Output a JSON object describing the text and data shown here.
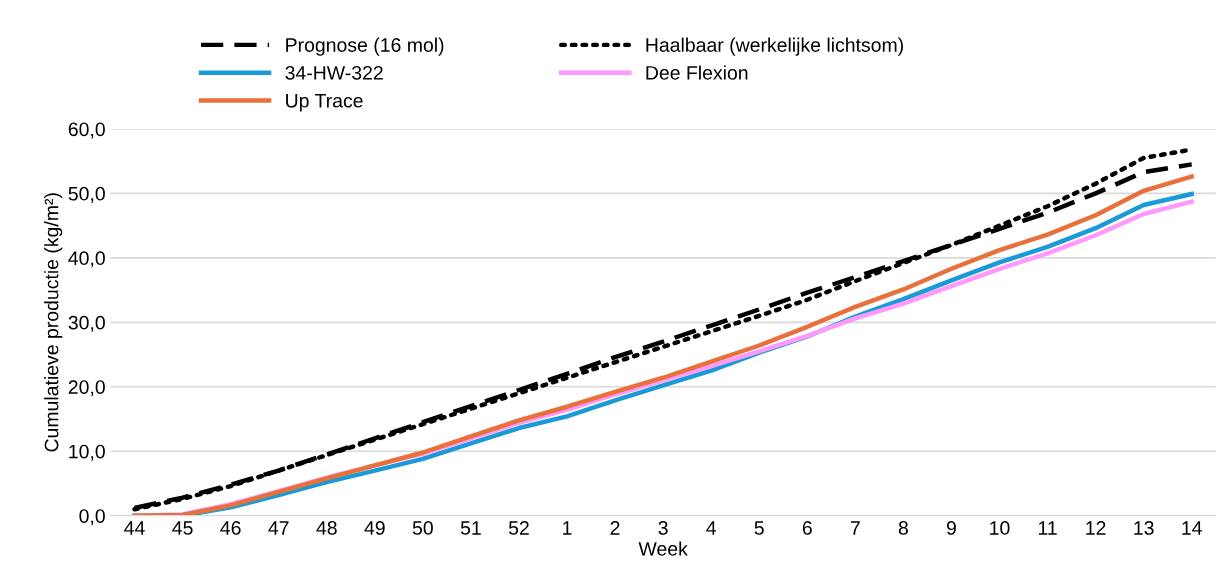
{
  "chart_data": {
    "type": "line",
    "xlabel": "Week",
    "ylabel": "Cumulatieve productie (kg/m²)",
    "categories": [
      "44",
      "45",
      "46",
      "47",
      "48",
      "49",
      "50",
      "51",
      "52",
      "1",
      "2",
      "3",
      "4",
      "5",
      "6",
      "7",
      "8",
      "9",
      "10",
      "11",
      "12",
      "13",
      "14"
    ],
    "series": [
      {
        "name": "Prognose (16 mol)",
        "color": "#000000",
        "line_style": "dashed",
        "values": [
          1.2,
          2.8,
          4.8,
          7.0,
          9.5,
          12.0,
          14.5,
          17.0,
          19.5,
          22.0,
          24.6,
          27.0,
          29.5,
          32.0,
          34.6,
          37.0,
          39.5,
          42.0,
          44.5,
          47.0,
          50.0,
          53.3,
          54.5
        ]
      },
      {
        "name": "Haalbaar (werkelijke lichtsom)",
        "color": "#000000",
        "line_style": "dotted",
        "values": [
          1.0,
          2.6,
          4.6,
          7.0,
          9.4,
          11.8,
          14.2,
          16.6,
          19.0,
          21.4,
          23.8,
          26.2,
          28.6,
          31.0,
          33.5,
          36.4,
          39.2,
          42.0,
          45.0,
          48.0,
          51.5,
          55.5,
          56.8
        ]
      },
      {
        "name": "34-HW-322",
        "color": "#1a9bd7",
        "line_style": "solid",
        "values": [
          0,
          0,
          1.3,
          3.2,
          5.2,
          7.0,
          8.8,
          11.2,
          13.6,
          15.4,
          17.9,
          20.2,
          22.5,
          25.3,
          27.8,
          30.9,
          33.6,
          36.5,
          39.3,
          41.7,
          44.6,
          48.2,
          49.9
        ]
      },
      {
        "name": "Dee Flexion",
        "color": "#ff99ff",
        "line_style": "solid",
        "values": [
          0,
          0.2,
          1.8,
          3.8,
          5.9,
          7.8,
          9.6,
          12.0,
          14.4,
          16.4,
          18.8,
          21.0,
          23.2,
          25.5,
          27.9,
          30.6,
          32.9,
          35.6,
          38.3,
          40.7,
          43.5,
          46.8,
          48.7
        ]
      },
      {
        "name": "Up Trace",
        "color": "#e8703a",
        "line_style": "solid",
        "values": [
          0,
          0.1,
          1.6,
          3.7,
          5.8,
          7.8,
          9.8,
          12.3,
          14.8,
          16.9,
          19.2,
          21.4,
          23.9,
          26.4,
          29.3,
          32.4,
          35.1,
          38.3,
          41.2,
          43.6,
          46.6,
          50.4,
          52.6
        ]
      }
    ],
    "ylim": [
      0,
      60
    ],
    "yticks": [
      {
        "value": 0,
        "label": "0,0"
      },
      {
        "value": 10,
        "label": "10,0"
      },
      {
        "value": 20,
        "label": "20,0"
      },
      {
        "value": 30,
        "label": "30,0"
      },
      {
        "value": 40,
        "label": "40,0"
      },
      {
        "value": 50,
        "label": "50,0"
      },
      {
        "value": 60,
        "label": "60,0"
      }
    ],
    "grid": "y",
    "legend": "top",
    "marker": "none"
  }
}
